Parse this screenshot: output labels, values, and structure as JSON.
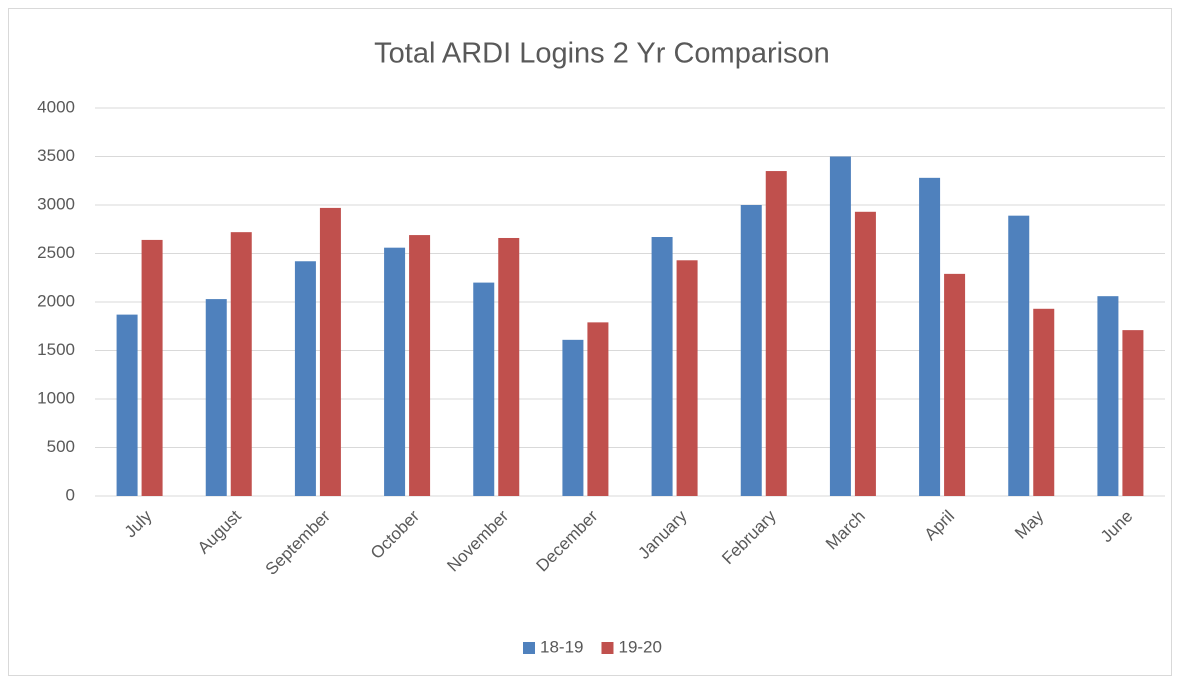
{
  "chart_data": {
    "type": "bar",
    "title": "Total ARDI Logins 2 Yr Comparison",
    "categories": [
      "July",
      "August",
      "September",
      "October",
      "November",
      "December",
      "January",
      "February",
      "March",
      "April",
      "May",
      "June"
    ],
    "series": [
      {
        "name": "18-19",
        "color": "#4f81bd",
        "values": [
          1870,
          2030,
          2420,
          2560,
          2200,
          1610,
          2670,
          3000,
          3500,
          3280,
          2890,
          2060
        ]
      },
      {
        "name": "19-20",
        "color": "#c0504d",
        "values": [
          2640,
          2720,
          2970,
          2690,
          2660,
          1790,
          2430,
          3350,
          2930,
          2290,
          1930,
          1710
        ]
      }
    ],
    "ylim": [
      0,
      4000
    ],
    "yticks": [
      0,
      500,
      1000,
      1500,
      2000,
      2500,
      3000,
      3500,
      4000
    ],
    "grid": true,
    "legend": "bottom"
  }
}
